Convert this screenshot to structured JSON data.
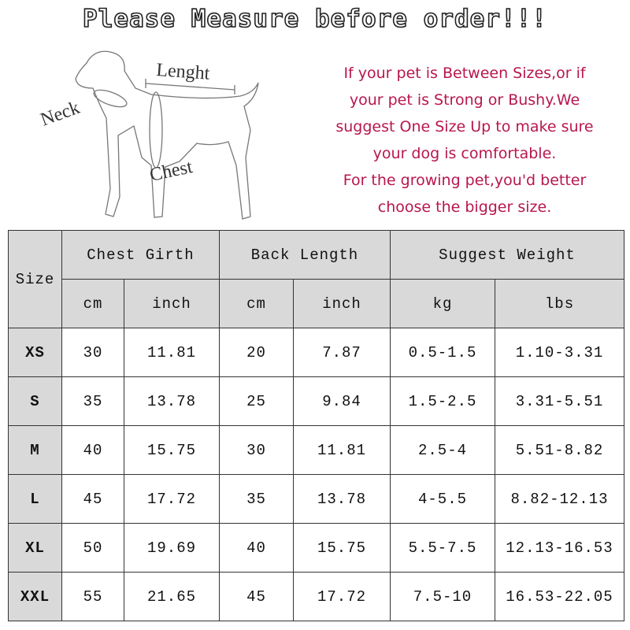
{
  "title": "Please Measure before order!!!",
  "diagram": {
    "labels": {
      "length": "Lenght",
      "neck": "Neck",
      "chest": "Chest"
    }
  },
  "notes": [
    "If your pet is Between Sizes,or if",
    "your pet is Strong or Bushy.We",
    "suggest One Size Up to make sure",
    "your dog is comfortable.",
    "For the growing pet,you'd better",
    "choose the bigger size."
  ],
  "colors": {
    "note_text": "#b8164f",
    "header_bg": "#d9d9d9",
    "border": "#333333"
  },
  "table": {
    "size_header": "Size",
    "groups": [
      "Chest Girth",
      "Back Length",
      "Suggest Weight"
    ],
    "units": [
      "cm",
      "inch",
      "cm",
      "inch",
      "kg",
      "lbs"
    ],
    "rows": [
      [
        "XS",
        "30",
        "11.81",
        "20",
        "7.87",
        "0.5-1.5",
        "1.10-3.31"
      ],
      [
        "S",
        "35",
        "13.78",
        "25",
        "9.84",
        "1.5-2.5",
        "3.31-5.51"
      ],
      [
        "M",
        "40",
        "15.75",
        "30",
        "11.81",
        "2.5-4",
        "5.51-8.82"
      ],
      [
        "L",
        "45",
        "17.72",
        "35",
        "13.78",
        "4-5.5",
        "8.82-12.13"
      ],
      [
        "XL",
        "50",
        "19.69",
        "40",
        "15.75",
        "5.5-7.5",
        "12.13-16.53"
      ],
      [
        "XXL",
        "55",
        "21.65",
        "45",
        "17.72",
        "7.5-10",
        "16.53-22.05"
      ]
    ]
  }
}
